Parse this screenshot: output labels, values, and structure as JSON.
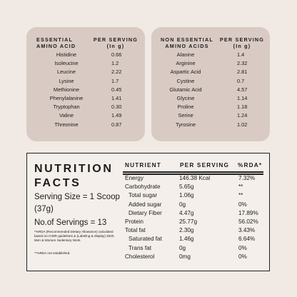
{
  "essential": {
    "header_name": "ESSENTIAL AMINO ACID",
    "header_serving": "PER SERVING (In g)",
    "rows": [
      {
        "name": "Histidine",
        "value": "0.66"
      },
      {
        "name": "Isoleucine",
        "value": "1.2"
      },
      {
        "name": "Leucine",
        "value": "2.22"
      },
      {
        "name": "Lysine",
        "value": "1.7"
      },
      {
        "name": "Methionine",
        "value": "0.45"
      },
      {
        "name": "Phenylalanine",
        "value": "1.41"
      },
      {
        "name": "Tryptophan",
        "value": "0.30"
      },
      {
        "name": "Valine",
        "value": "1.49"
      },
      {
        "name": "Threonine",
        "value": "0.87"
      }
    ]
  },
  "non_essential": {
    "header_name": "NON ESSENTIAL AMINO ACIDS",
    "header_serving": "PER SERVING (In g)",
    "rows": [
      {
        "name": "Alanine",
        "value": "1.4"
      },
      {
        "name": "Arginine",
        "value": "2.32"
      },
      {
        "name": "Aspartic Acid",
        "value": "2.81"
      },
      {
        "name": "Cystine",
        "value": "0.7"
      },
      {
        "name": "Glutamic Acid",
        "value": "4.57"
      },
      {
        "name": "Glycine",
        "value": "1.14"
      },
      {
        "name": "Proline",
        "value": "1.18"
      },
      {
        "name": "Serine",
        "value": "1.24"
      },
      {
        "name": "Tyrosine",
        "value": "1.02"
      }
    ]
  },
  "facts": {
    "title": "NUTRITION FACTS",
    "serving_size": "Serving Size = 1 Scoop (37g)",
    "servings": "No.of Servings = 13",
    "footnote1": "*%RDA (Recommended Dietary Allowance) calculated based on ICMR guidelines & (Labeling & display) 2020. Men & Women Sedentary Work.",
    "footnote2": "**%RDA not established.",
    "col_nutrient": "NUTRIENT",
    "col_serving": "PER SERVING",
    "col_rda": "%RDA*",
    "rows": [
      {
        "name": "Energy",
        "serving": "146.38 Kcal",
        "rda": "7.32%"
      },
      {
        "name": "Carbohydrate",
        "serving": "5.65g",
        "rda": "**"
      },
      {
        "name": "Total sugar",
        "serving": "1.06g",
        "rda": "**"
      },
      {
        "name": "Added sugar",
        "serving": "0g",
        "rda": "0%"
      },
      {
        "name": "Dietary Fiber",
        "serving": "4.47g",
        "rda": "17.89%"
      },
      {
        "name": "Protein",
        "serving": "25.77g",
        "rda": "56.02%"
      },
      {
        "name": "Total fat",
        "serving": "2.30g",
        "rda": "3.43%"
      },
      {
        "name": "Saturated fat",
        "serving": "1.46g",
        "rda": "6.64%"
      },
      {
        "name": "Trans fat",
        "serving": "0g",
        "rda": "0%"
      },
      {
        "name": "Cholesterol",
        "serving": "0mg",
        "rda": "0%"
      }
    ]
  }
}
